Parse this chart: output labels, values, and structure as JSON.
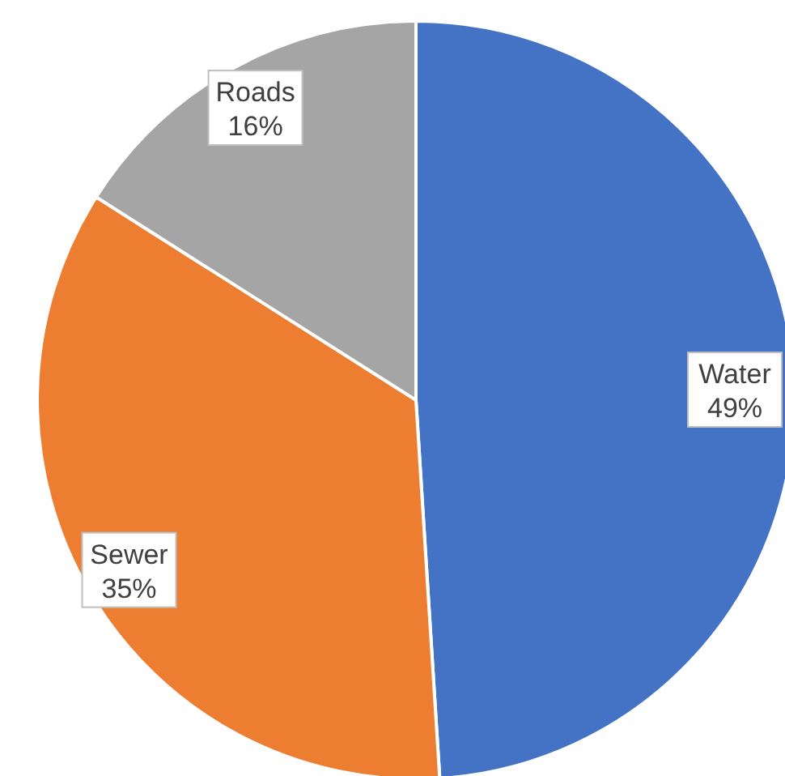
{
  "chart_data": {
    "type": "pie",
    "categories": [
      "Water",
      "Sewer",
      "Roads"
    ],
    "values": [
      49,
      35,
      16
    ],
    "colors": [
      "#4472c4",
      "#ed7d31",
      "#a5a5a5"
    ],
    "value_labels": [
      "49%",
      "35%",
      "16%"
    ],
    "legend": false
  }
}
